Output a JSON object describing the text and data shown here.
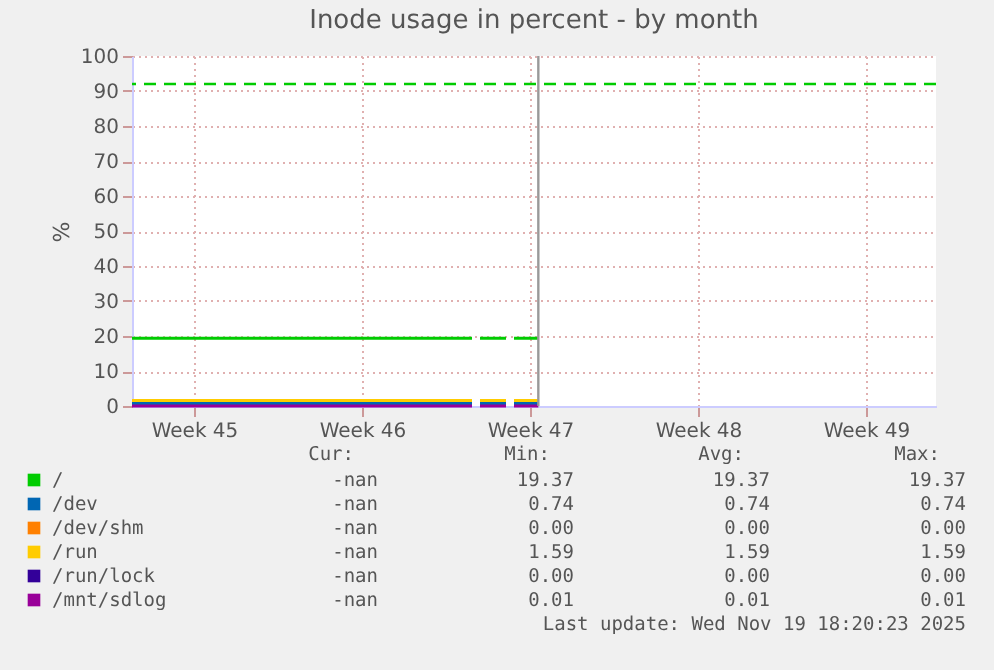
{
  "chart_data": {
    "type": "line",
    "title": "Inode usage in percent - by month",
    "ylabel": "%",
    "x": [
      "2025-11-02T20:00",
      "2025-11-17T00:00",
      null,
      "2025-11-17T08:00",
      "2025-11-18T10:00",
      null,
      "2025-11-18T18:00",
      "2025-11-19T18:20"
    ],
    "series": [
      {
        "name": "/",
        "color": "#00cc00",
        "values": [
          19.37,
          19.37,
          null,
          19.37,
          19.37,
          null,
          19.37,
          19.37
        ]
      },
      {
        "name": "/dev",
        "color": "#0066b3",
        "values": [
          0.74,
          0.74,
          null,
          0.74,
          0.74,
          null,
          0.74,
          0.74
        ]
      },
      {
        "name": "/dev/shm",
        "color": "#ff8000",
        "values": [
          null,
          null,
          null,
          null,
          null,
          null,
          null,
          null
        ]
      },
      {
        "name": "/run",
        "color": "#ffcc00",
        "values": [
          1.59,
          1.59,
          null,
          1.59,
          1.59,
          null,
          1.59,
          1.59
        ]
      },
      {
        "name": "/run/lock",
        "color": "#330099",
        "values": [
          null,
          null,
          null,
          null,
          null,
          null,
          null,
          null
        ]
      },
      {
        "name": "/mnt/sdlog",
        "color": "#990099",
        "values": [
          0.01,
          0.01,
          null,
          0.01,
          0.01,
          null,
          0.01,
          0.01
        ]
      }
    ],
    "xlim": [
      "2025-11-02T20:00",
      "2025-12-06T08:00"
    ],
    "xticks": [
      {
        "value": "2025-11-05T10:00",
        "label": "Week 45"
      },
      {
        "value": "2025-11-12T10:00",
        "label": "Week 46"
      },
      {
        "value": "2025-11-19T10:00",
        "label": "Week 47"
      },
      {
        "value": "2025-11-26T10:00",
        "label": "Week 48"
      },
      {
        "value": "2025-12-03T10:00",
        "label": "Week 49"
      }
    ],
    "ylim": [
      0,
      100
    ],
    "yticks": [
      0,
      10,
      20,
      30,
      40,
      50,
      60,
      70,
      80,
      90,
      100
    ],
    "grid": true,
    "legend": "bottom",
    "line_style": "solid",
    "marker": "none",
    "ref_lines": [
      {
        "axis": "y",
        "value": 92,
        "color": "#00cc00",
        "line_style": "dashed"
      },
      {
        "axis": "x",
        "value": "2025-11-19T18:20",
        "color": "#999999",
        "line_style": "solid"
      }
    ],
    "annotations": [
      "Cur:",
      "Min:",
      "Avg:",
      "Max:",
      "-nan",
      "19.37",
      "19.37",
      "19.37",
      "-nan",
      "0.74",
      "0.74",
      "0.74",
      "-nan",
      "0.00",
      "0.00",
      "0.00",
      "-nan",
      "1.59",
      "1.59",
      "1.59",
      "-nan",
      "0.00",
      "0.00",
      "0.00",
      "-nan",
      "0.01",
      "0.01",
      "0.01",
      "Last update: Wed Nov 19 18:20:23 2025"
    ]
  }
}
